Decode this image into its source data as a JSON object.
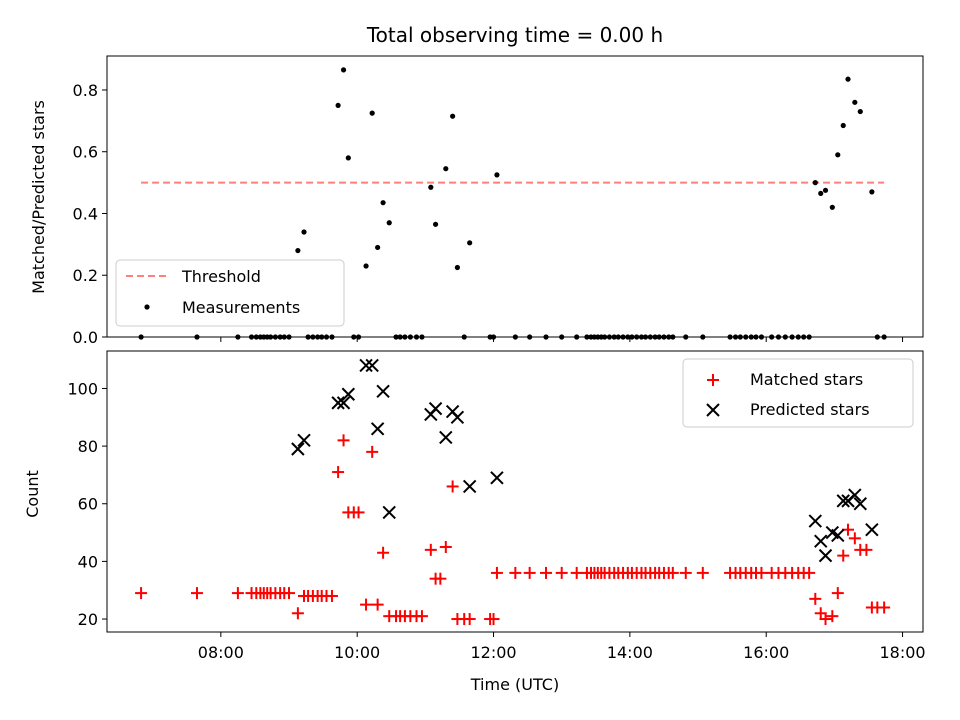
{
  "chart_data": [
    {
      "type": "scatter",
      "title": "Total observing time = 0.00 h",
      "xlabel": "",
      "ylabel": "Matched/Predicted stars",
      "xlim": [
        6.33,
        18.3
      ],
      "ylim": [
        0,
        0.91
      ],
      "yticks": [
        0.0,
        0.2,
        0.4,
        0.6,
        0.8
      ],
      "ytick_labels": [
        "0.0",
        "0.2",
        "0.4",
        "0.6",
        "0.8"
      ],
      "legend_position": "lower-left",
      "threshold": {
        "name": "Threshold",
        "value": 0.5,
        "x_start": 6.83,
        "x_end": 17.73,
        "color": "#ff7f7f"
      },
      "series": [
        {
          "name": "Measurements",
          "color": "#000000",
          "points": [
            [
              6.83,
              0
            ],
            [
              7.65,
              0
            ],
            [
              8.25,
              0
            ],
            [
              8.45,
              0
            ],
            [
              8.52,
              0
            ],
            [
              8.58,
              0
            ],
            [
              8.63,
              0
            ],
            [
              8.68,
              0
            ],
            [
              8.73,
              0
            ],
            [
              8.8,
              0
            ],
            [
              8.87,
              0
            ],
            [
              8.93,
              0
            ],
            [
              9.0,
              0
            ],
            [
              9.13,
              0.28
            ],
            [
              9.22,
              0.34
            ],
            [
              9.28,
              0
            ],
            [
              9.35,
              0
            ],
            [
              9.42,
              0
            ],
            [
              9.48,
              0
            ],
            [
              9.55,
              0
            ],
            [
              9.63,
              0
            ],
            [
              9.72,
              0.75
            ],
            [
              9.8,
              0.865
            ],
            [
              9.87,
              0.58
            ],
            [
              9.95,
              0
            ],
            [
              10.02,
              0
            ],
            [
              10.13,
              0.23
            ],
            [
              10.22,
              0.725
            ],
            [
              10.3,
              0.29
            ],
            [
              10.38,
              0.435
            ],
            [
              10.47,
              0.37
            ],
            [
              10.57,
              0
            ],
            [
              10.63,
              0
            ],
            [
              10.7,
              0
            ],
            [
              10.78,
              0
            ],
            [
              10.87,
              0
            ],
            [
              10.95,
              0
            ],
            [
              11.08,
              0.485
            ],
            [
              11.15,
              0.365
            ],
            [
              11.3,
              0.545
            ],
            [
              11.4,
              0.715
            ],
            [
              11.47,
              0.225
            ],
            [
              11.57,
              0
            ],
            [
              11.65,
              0.305
            ],
            [
              11.95,
              0
            ],
            [
              12.0,
              0
            ],
            [
              12.05,
              0.525
            ],
            [
              12.32,
              0
            ],
            [
              12.53,
              0
            ],
            [
              12.77,
              0
            ],
            [
              13.0,
              0
            ],
            [
              13.22,
              0
            ],
            [
              13.37,
              0
            ],
            [
              13.43,
              0
            ],
            [
              13.48,
              0
            ],
            [
              13.53,
              0
            ],
            [
              13.58,
              0
            ],
            [
              13.63,
              0
            ],
            [
              13.7,
              0
            ],
            [
              13.77,
              0
            ],
            [
              13.83,
              0
            ],
            [
              13.9,
              0
            ],
            [
              13.97,
              0
            ],
            [
              14.03,
              0
            ],
            [
              14.1,
              0
            ],
            [
              14.17,
              0
            ],
            [
              14.23,
              0
            ],
            [
              14.3,
              0
            ],
            [
              14.37,
              0
            ],
            [
              14.43,
              0
            ],
            [
              14.5,
              0
            ],
            [
              14.57,
              0
            ],
            [
              14.63,
              0
            ],
            [
              14.82,
              0
            ],
            [
              15.07,
              0
            ],
            [
              15.47,
              0
            ],
            [
              15.55,
              0
            ],
            [
              15.62,
              0
            ],
            [
              15.7,
              0
            ],
            [
              15.78,
              0
            ],
            [
              15.85,
              0
            ],
            [
              15.93,
              0
            ],
            [
              16.08,
              0
            ],
            [
              16.18,
              0
            ],
            [
              16.28,
              0
            ],
            [
              16.38,
              0
            ],
            [
              16.47,
              0
            ],
            [
              16.55,
              0
            ],
            [
              16.63,
              0
            ],
            [
              16.72,
              0.5
            ],
            [
              16.8,
              0.465
            ],
            [
              16.87,
              0.475
            ],
            [
              16.97,
              0.42
            ],
            [
              17.05,
              0.59
            ],
            [
              17.13,
              0.685
            ],
            [
              17.2,
              0.835
            ],
            [
              17.3,
              0.76
            ],
            [
              17.38,
              0.73
            ],
            [
              17.55,
              0.47
            ],
            [
              17.63,
              0
            ],
            [
              17.73,
              0
            ]
          ]
        }
      ]
    },
    {
      "type": "scatter",
      "title": "",
      "xlabel": "Time (UTC)",
      "ylabel": "Count",
      "xlim": [
        6.33,
        18.3
      ],
      "ylim": [
        15.5,
        113
      ],
      "xticks": [
        8,
        10,
        12,
        14,
        16,
        18
      ],
      "xtick_labels": [
        "08:00",
        "10:00",
        "12:00",
        "14:00",
        "16:00",
        "18:00"
      ],
      "yticks": [
        20,
        40,
        60,
        80,
        100
      ],
      "ytick_labels": [
        "20",
        "40",
        "60",
        "80",
        "100"
      ],
      "legend_position": "upper-right",
      "series": [
        {
          "name": "Matched stars",
          "color": "#ff0000",
          "marker": "plus",
          "points": [
            [
              6.83,
              29
            ],
            [
              7.65,
              29
            ],
            [
              8.25,
              29
            ],
            [
              8.45,
              29
            ],
            [
              8.52,
              29
            ],
            [
              8.58,
              29
            ],
            [
              8.63,
              29
            ],
            [
              8.68,
              29
            ],
            [
              8.73,
              29
            ],
            [
              8.8,
              29
            ],
            [
              8.87,
              29
            ],
            [
              8.93,
              29
            ],
            [
              9.0,
              29
            ],
            [
              9.13,
              22
            ],
            [
              9.22,
              28
            ],
            [
              9.28,
              28
            ],
            [
              9.35,
              28
            ],
            [
              9.42,
              28
            ],
            [
              9.48,
              28
            ],
            [
              9.55,
              28
            ],
            [
              9.63,
              28
            ],
            [
              9.72,
              71
            ],
            [
              9.8,
              82
            ],
            [
              9.87,
              57
            ],
            [
              9.95,
              57
            ],
            [
              10.02,
              57
            ],
            [
              10.13,
              25
            ],
            [
              10.22,
              78
            ],
            [
              10.3,
              25
            ],
            [
              10.38,
              43
            ],
            [
              10.47,
              21
            ],
            [
              10.57,
              21
            ],
            [
              10.63,
              21
            ],
            [
              10.7,
              21
            ],
            [
              10.78,
              21
            ],
            [
              10.87,
              21
            ],
            [
              10.95,
              21
            ],
            [
              11.08,
              44
            ],
            [
              11.15,
              34
            ],
            [
              11.22,
              34
            ],
            [
              11.3,
              45
            ],
            [
              11.4,
              66
            ],
            [
              11.47,
              20
            ],
            [
              11.57,
              20
            ],
            [
              11.65,
              20
            ],
            [
              11.95,
              20
            ],
            [
              12.0,
              20
            ],
            [
              12.05,
              36
            ],
            [
              12.32,
              36
            ],
            [
              12.53,
              36
            ],
            [
              12.77,
              36
            ],
            [
              13.0,
              36
            ],
            [
              13.22,
              36
            ],
            [
              13.37,
              36
            ],
            [
              13.43,
              36
            ],
            [
              13.48,
              36
            ],
            [
              13.53,
              36
            ],
            [
              13.58,
              36
            ],
            [
              13.63,
              36
            ],
            [
              13.7,
              36
            ],
            [
              13.77,
              36
            ],
            [
              13.83,
              36
            ],
            [
              13.9,
              36
            ],
            [
              13.97,
              36
            ],
            [
              14.03,
              36
            ],
            [
              14.1,
              36
            ],
            [
              14.17,
              36
            ],
            [
              14.23,
              36
            ],
            [
              14.3,
              36
            ],
            [
              14.37,
              36
            ],
            [
              14.43,
              36
            ],
            [
              14.5,
              36
            ],
            [
              14.57,
              36
            ],
            [
              14.63,
              36
            ],
            [
              14.82,
              36
            ],
            [
              15.07,
              36
            ],
            [
              15.47,
              36
            ],
            [
              15.55,
              36
            ],
            [
              15.62,
              36
            ],
            [
              15.7,
              36
            ],
            [
              15.78,
              36
            ],
            [
              15.85,
              36
            ],
            [
              15.93,
              36
            ],
            [
              16.08,
              36
            ],
            [
              16.18,
              36
            ],
            [
              16.28,
              36
            ],
            [
              16.38,
              36
            ],
            [
              16.47,
              36
            ],
            [
              16.55,
              36
            ],
            [
              16.63,
              36
            ],
            [
              16.72,
              27
            ],
            [
              16.8,
              22
            ],
            [
              16.87,
              20
            ],
            [
              16.97,
              21
            ],
            [
              17.05,
              29
            ],
            [
              17.13,
              42
            ],
            [
              17.2,
              51
            ],
            [
              17.3,
              48
            ],
            [
              17.38,
              44
            ],
            [
              17.47,
              44
            ],
            [
              17.55,
              24
            ],
            [
              17.63,
              24
            ],
            [
              17.73,
              24
            ]
          ]
        },
        {
          "name": "Predicted stars",
          "color": "#000000",
          "marker": "x",
          "points": [
            [
              9.13,
              79
            ],
            [
              9.22,
              82
            ],
            [
              9.72,
              95
            ],
            [
              9.8,
              95
            ],
            [
              9.87,
              98
            ],
            [
              10.13,
              108
            ],
            [
              10.22,
              108
            ],
            [
              10.3,
              86
            ],
            [
              10.38,
              99
            ],
            [
              10.47,
              57
            ],
            [
              11.08,
              91
            ],
            [
              11.15,
              93
            ],
            [
              11.3,
              83
            ],
            [
              11.4,
              92
            ],
            [
              11.47,
              90
            ],
            [
              11.65,
              66
            ],
            [
              12.05,
              69
            ],
            [
              16.72,
              54
            ],
            [
              16.8,
              47
            ],
            [
              16.87,
              42
            ],
            [
              16.97,
              50
            ],
            [
              17.05,
              49
            ],
            [
              17.13,
              61
            ],
            [
              17.2,
              61
            ],
            [
              17.3,
              63
            ],
            [
              17.38,
              60
            ],
            [
              17.55,
              51
            ]
          ]
        }
      ]
    }
  ]
}
